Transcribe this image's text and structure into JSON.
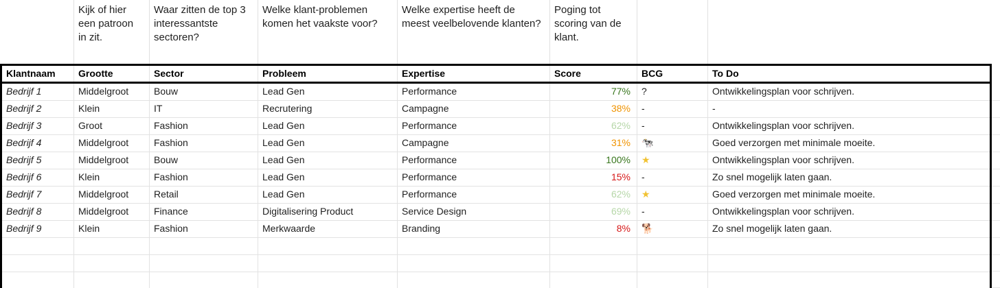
{
  "sheet": {
    "annotations": [
      {
        "text": "Kijk of hier een patroon in zit."
      },
      {
        "text": "Waar zitten de top 3 interessantste sectoren?"
      },
      {
        "text": "Welke klant-problemen komen het vaakste voor?"
      },
      {
        "text": "Welke expertise heeft de meest veelbelovende klanten?"
      },
      {
        "text": "Poging tot scoring van de klant."
      }
    ],
    "headers": [
      "Klantnaam",
      "Grootte",
      "Sector",
      "Probleem",
      "Expertise",
      "Score",
      "BCG",
      "To Do"
    ],
    "rows": [
      {
        "klantnaam": "Bedrijf 1",
        "grootte": "Middelgroot",
        "sector": "Bouw",
        "probleem": "Lead Gen",
        "expertise": "Performance",
        "score": "77%",
        "score_color": "#38761d",
        "bcg": "?",
        "bcg_icon": "question-mark",
        "bcg_color": "#1f1f1f",
        "todo": "Ontwikkelingsplan voor schrijven."
      },
      {
        "klantnaam": "Bedrijf 2",
        "grootte": "Klein",
        "sector": "IT",
        "probleem": "Recrutering",
        "expertise": "Campagne",
        "score": "38%",
        "score_color": "#f09300",
        "bcg": "-",
        "bcg_icon": "dash",
        "bcg_color": "#1f1f1f",
        "todo": "-"
      },
      {
        "klantnaam": "Bedrijf 3",
        "grootte": "Groot",
        "sector": "Fashion",
        "probleem": "Lead Gen",
        "expertise": "Performance",
        "score": "62%",
        "score_color": "#b6d7a8",
        "bcg": "-",
        "bcg_icon": "dash",
        "bcg_color": "#1f1f1f",
        "todo": "Ontwikkelingsplan voor schrijven."
      },
      {
        "klantnaam": "Bedrijf 4",
        "grootte": "Middelgroot",
        "sector": "Fashion",
        "probleem": "Lead Gen",
        "expertise": "Campagne",
        "score": "31%",
        "score_color": "#f09300",
        "bcg": "🐄",
        "bcg_icon": "cow-icon",
        "bcg_color": "#1f1f1f",
        "todo": "Goed verzorgen met minimale moeite."
      },
      {
        "klantnaam": "Bedrijf 5",
        "grootte": "Middelgroot",
        "sector": "Bouw",
        "probleem": "Lead Gen",
        "expertise": "Performance",
        "score": "100%",
        "score_color": "#38761d",
        "bcg": "★",
        "bcg_icon": "star-icon",
        "bcg_color": "#f1c232",
        "todo": "Ontwikkelingsplan voor schrijven."
      },
      {
        "klantnaam": "Bedrijf 6",
        "grootte": "Klein",
        "sector": "Fashion",
        "probleem": "Lead Gen",
        "expertise": "Performance",
        "score": "15%",
        "score_color": "#d61616",
        "bcg": "-",
        "bcg_icon": "dash",
        "bcg_color": "#1f1f1f",
        "todo": "Zo snel mogelijk laten gaan."
      },
      {
        "klantnaam": "Bedrijf 7",
        "grootte": "Middelgroot",
        "sector": "Retail",
        "probleem": "Lead Gen",
        "expertise": "Performance",
        "score": "62%",
        "score_color": "#b6d7a8",
        "bcg": "★",
        "bcg_icon": "star-icon",
        "bcg_color": "#f1c232",
        "todo": "Goed verzorgen met minimale moeite."
      },
      {
        "klantnaam": "Bedrijf 8",
        "grootte": "Middelgroot",
        "sector": "Finance",
        "probleem": "Digitalisering Product",
        "expertise": "Service Design",
        "score": "69%",
        "score_color": "#b6d7a8",
        "bcg": "-",
        "bcg_icon": "dash",
        "bcg_color": "#1f1f1f",
        "todo": "Ontwikkelingsplan voor schrijven."
      },
      {
        "klantnaam": "Bedrijf 9",
        "grootte": "Klein",
        "sector": "Fashion",
        "probleem": "Merkwaarde",
        "expertise": "Branding",
        "score": "8%",
        "score_color": "#d61616",
        "bcg": "🐕",
        "bcg_icon": "dog-icon",
        "bcg_color": "#1f1f1f",
        "todo": "Zo snel mogelijk laten gaan."
      }
    ],
    "colors": {
      "score_high": "#38761d",
      "score_mid_high": "#b6d7a8",
      "score_mid": "#f09300",
      "score_low": "#d61616",
      "star": "#f1c232",
      "gridline": "#e2e2e2",
      "table_border": "#000000"
    }
  }
}
